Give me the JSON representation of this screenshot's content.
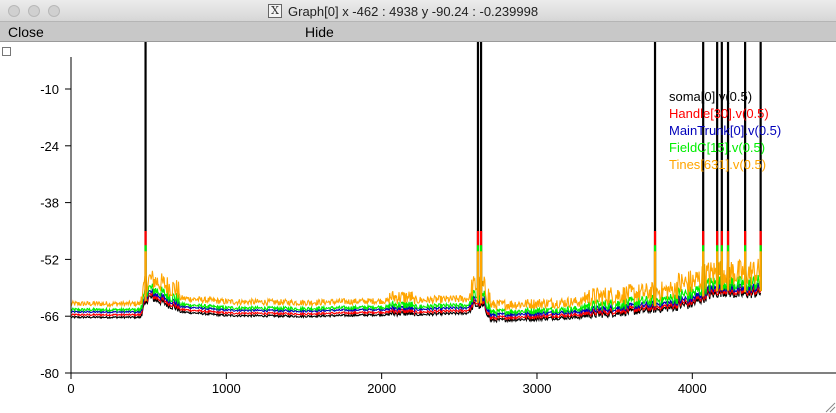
{
  "window": {
    "title": "Graph[0]  x -462 : 4938  y -90.24 : -0.239998",
    "title_icon": "x11-icon"
  },
  "menu": {
    "close_label": "Close",
    "hide_label": "Hide"
  },
  "chart_data": {
    "type": "line",
    "xlim": [
      0,
      4938
    ],
    "ylim": [
      -80,
      -10
    ],
    "x_ticks": [
      "0",
      "1000",
      "2000",
      "3000",
      "4000"
    ],
    "y_ticks": [
      "-10",
      "-24",
      "-38",
      "-52",
      "-66",
      "-80"
    ],
    "grid": false,
    "legend_placement": "top-right",
    "series": [
      {
        "name": "soma[0].v(0.5)",
        "color": "#000000",
        "offset": -1.2
      },
      {
        "name": "Handle[30].v(0.5)",
        "color": "#ff0000",
        "offset": -0.6
      },
      {
        "name": "MainTrunk[0].v(0.5)",
        "color": "#0000bb",
        "offset": -0.4
      },
      {
        "name": "FieldC[15].v(0.5)",
        "color": "#00ee00",
        "offset": 0.0
      },
      {
        "name": "Tines[631].v(0.5)",
        "color": "#ffa500",
        "offset": 1.2
      }
    ],
    "spike_times": [
      480,
      2620,
      2640,
      3760,
      4070,
      4160,
      4190,
      4230,
      4340,
      4440
    ],
    "baseline": [
      [
        0,
        -64.8
      ],
      [
        450,
        -64.8
      ],
      [
        500,
        -60.5
      ],
      [
        700,
        -63.5
      ],
      [
        1000,
        -64.4
      ],
      [
        1500,
        -64.6
      ],
      [
        2000,
        -64.2
      ],
      [
        2200,
        -64.3
      ],
      [
        2550,
        -63.9
      ],
      [
        2600,
        -62.5
      ],
      [
        2660,
        -63.0
      ],
      [
        2700,
        -65.8
      ],
      [
        3000,
        -65.4
      ],
      [
        3400,
        -64.8
      ],
      [
        3700,
        -63.8
      ],
      [
        4000,
        -62.6
      ],
      [
        4100,
        -60.5
      ],
      [
        4200,
        -59.5
      ],
      [
        4300,
        -60.2
      ],
      [
        4440,
        -59.8
      ]
    ]
  }
}
